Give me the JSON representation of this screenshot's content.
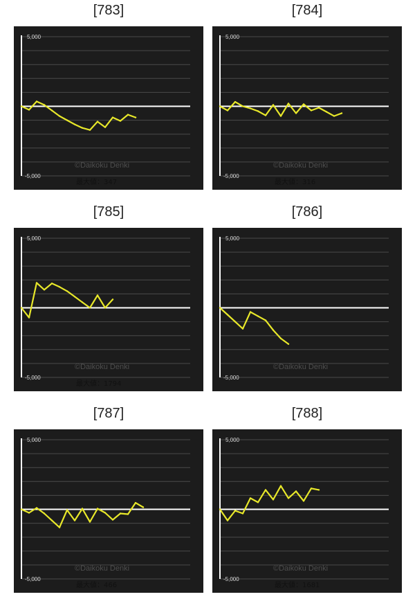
{
  "colors": {
    "background": "#1c1c1c",
    "line": "#e8e82a",
    "axis": "#ffffff",
    "grid": "#4a4a4a",
    "text": "#d8d8d8"
  },
  "chart_data": [
    {
      "type": "line",
      "title": "[783]",
      "ylim": [
        -5000,
        5000
      ],
      "y_ticks": [
        "5,000",
        "-5,000"
      ],
      "watermark": "©Daikoku Denki",
      "max_label": "最大値：347",
      "grid": true,
      "series": [
        {
          "values": [
            0,
            -250,
            347,
            100,
            -300,
            -700,
            -1000,
            -1300,
            -1550,
            -1700,
            -1100,
            -1500,
            -800,
            -1050,
            -600,
            -800
          ]
        }
      ]
    },
    {
      "type": "line",
      "title": "[784]",
      "ylim": [
        -5000,
        5000
      ],
      "y_ticks": [
        "5,000",
        "-5,000"
      ],
      "watermark": "©Daikoku Denki",
      "max_label": "最大値：316",
      "grid": true,
      "series": [
        {
          "values": [
            0,
            -300,
            316,
            0,
            -150,
            -350,
            -650,
            100,
            -700,
            200,
            -500,
            150,
            -300,
            -100,
            -400,
            -700,
            -500
          ]
        }
      ]
    },
    {
      "type": "line",
      "title": "[785]",
      "ylim": [
        -5000,
        5000
      ],
      "y_ticks": [
        "5,000",
        "-5,000"
      ],
      "watermark": "©Daikoku Denki",
      "max_label": "最大値：1794",
      "grid": true,
      "series": [
        {
          "values": [
            0,
            -700,
            1794,
            1300,
            1750,
            1500,
            1200,
            800,
            400,
            0,
            900,
            0,
            600
          ]
        }
      ]
    },
    {
      "type": "line",
      "title": "[786]",
      "ylim": [
        -5000,
        5000
      ],
      "y_ticks": [
        "5,000",
        "-5,000"
      ],
      "watermark": "©Daikoku Denki",
      "max_label": "",
      "grid": true,
      "series": [
        {
          "values": [
            0,
            -500,
            -1000,
            -1500,
            -300,
            -600,
            -900,
            -1600,
            -2200,
            -2600
          ]
        }
      ]
    },
    {
      "type": "line",
      "title": "[787]",
      "ylim": [
        -5000,
        5000
      ],
      "y_ticks": [
        "5,000",
        "-5,000"
      ],
      "watermark": "©Daikoku Denki",
      "max_label": "最大値：466",
      "grid": true,
      "series": [
        {
          "values": [
            0,
            -250,
            100,
            -300,
            -800,
            -1300,
            -50,
            -800,
            50,
            -900,
            50,
            -250,
            -750,
            -300,
            -350,
            466,
            150
          ]
        }
      ]
    },
    {
      "type": "line",
      "title": "[788]",
      "ylim": [
        -5000,
        5000
      ],
      "y_ticks": [
        "5,000",
        "-5,000"
      ],
      "watermark": "©Daikoku Denki",
      "max_label": "最大値：1681",
      "grid": true,
      "series": [
        {
          "values": [
            0,
            -800,
            -100,
            -300,
            800,
            500,
            1400,
            700,
            1681,
            800,
            1300,
            600,
            1500,
            1400
          ]
        }
      ]
    }
  ]
}
